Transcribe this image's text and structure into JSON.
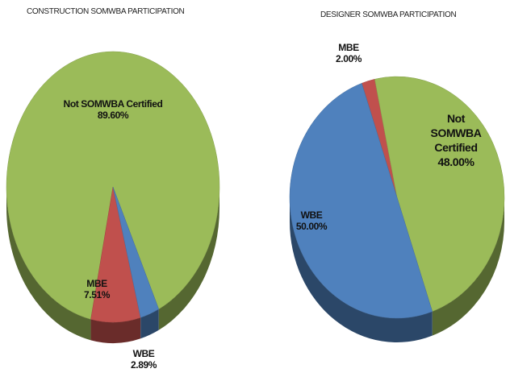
{
  "chart_data": [
    {
      "type": "pie",
      "title": "CONSTRUCTION SOMWBA PARTICIPATION",
      "categories": [
        "Not SOMWBA Certified",
        "MBE",
        "WBE"
      ],
      "values": [
        89.6,
        7.51,
        2.89
      ],
      "value_labels": [
        "89.60%",
        "7.51%",
        "2.89%"
      ],
      "colors": [
        "#9bbb59",
        "#c0504d",
        "#4f81bd"
      ]
    },
    {
      "type": "pie",
      "title": "DESIGNER SOMWBA PARTICIPATION",
      "categories": [
        "MBE",
        "Not SOMWBA Certified",
        "WBE"
      ],
      "values": [
        2.0,
        48.0,
        50.0
      ],
      "value_labels": [
        "2.00%",
        "48.00%",
        "50.00%"
      ],
      "colors": [
        "#c0504d",
        "#9bbb59",
        "#4f81bd"
      ]
    }
  ]
}
